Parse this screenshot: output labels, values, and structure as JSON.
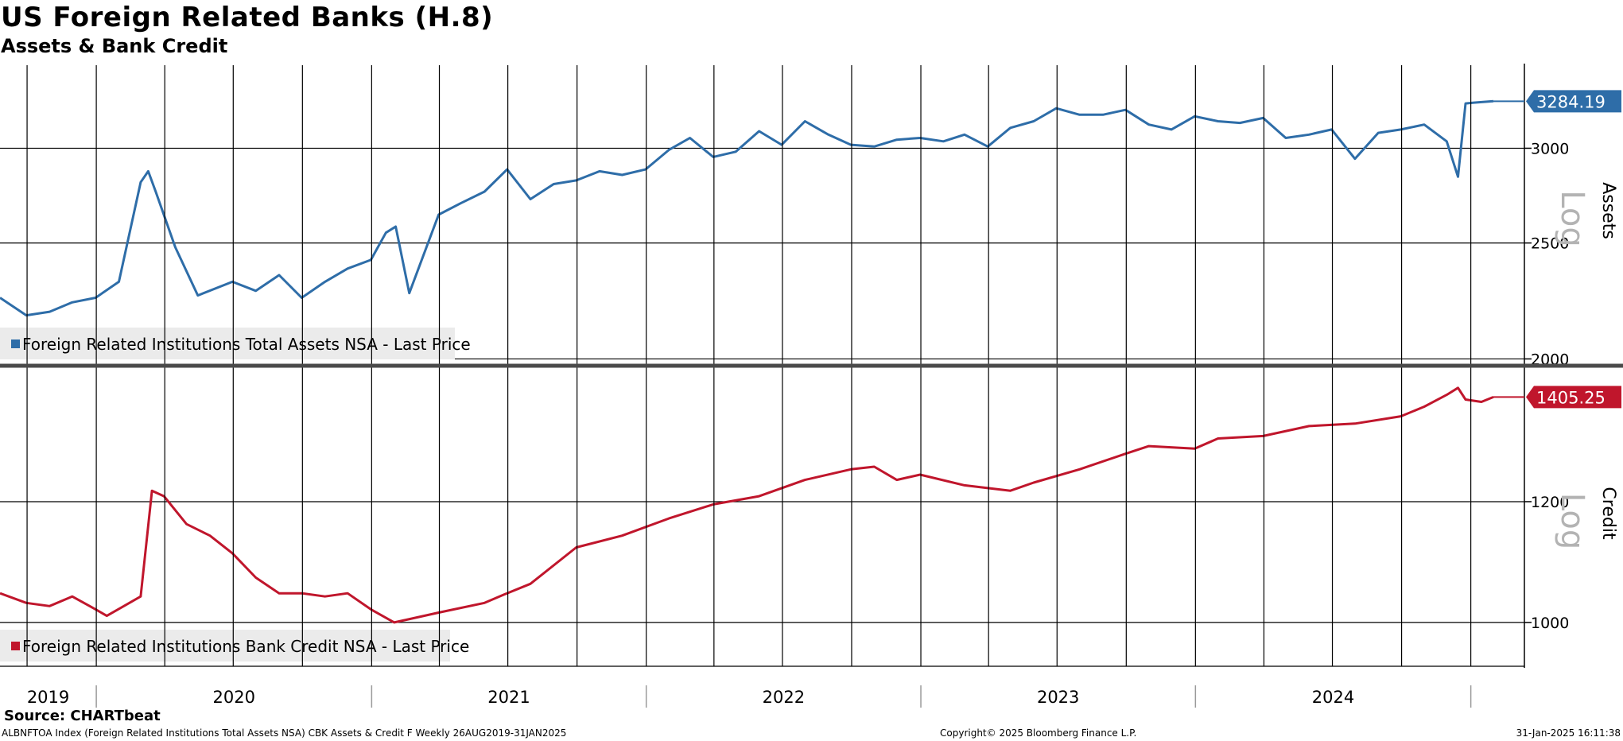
{
  "title": "US Foreign Related Banks (H.8)",
  "subtitle": "Assets & Bank Credit",
  "source": "Source: CHARTbeat",
  "footer": {
    "left": "ALBNFTOA Index (Foreign Related Institutions Total Assets NSA) CBK Assets & Credit F  Weekly 26AUG2019-31JAN2025",
    "center": "Copyright© 2025 Bloomberg Finance L.P.",
    "right": "31-Jan-2025 16:11:38"
  },
  "colors": {
    "assets": "#2e6da8",
    "credit": "#c0162c"
  },
  "chart_data": [
    {
      "type": "line",
      "log_scale": true,
      "axis_title": "Assets",
      "scale_label": "Log",
      "ylim": [
        1980,
        3520
      ],
      "yticks": [
        2000,
        2500,
        3000
      ],
      "grid": true,
      "legend_position": "bottom-left",
      "last_value_label": "3284.19",
      "series": [
        {
          "name": "Foreign Related Institutions Total Assets NSA - Last Price",
          "x": [
            "2019-08-26",
            "2019-09-30",
            "2019-10-31",
            "2019-11-30",
            "2019-12-31",
            "2020-01-31",
            "2020-02-29",
            "2020-03-10",
            "2020-03-20",
            "2020-04-15",
            "2020-05-15",
            "2020-06-30",
            "2020-07-31",
            "2020-08-31",
            "2020-09-30",
            "2020-10-31",
            "2020-11-30",
            "2020-12-31",
            "2021-01-20",
            "2021-02-02",
            "2021-02-20",
            "2021-03-31",
            "2021-04-30",
            "2021-05-31",
            "2021-06-30",
            "2021-07-31",
            "2021-08-31",
            "2021-09-30",
            "2021-10-31",
            "2021-11-30",
            "2021-12-31",
            "2022-01-31",
            "2022-02-28",
            "2022-03-31",
            "2022-04-30",
            "2022-05-31",
            "2022-06-30",
            "2022-07-31",
            "2022-08-31",
            "2022-09-30",
            "2022-10-31",
            "2022-11-30",
            "2022-12-31",
            "2023-01-31",
            "2023-02-28",
            "2023-03-31",
            "2023-04-30",
            "2023-05-31",
            "2023-06-30",
            "2023-07-31",
            "2023-08-31",
            "2023-09-30",
            "2023-10-31",
            "2023-11-30",
            "2023-12-31",
            "2024-01-31",
            "2024-02-29",
            "2024-03-31",
            "2024-04-30",
            "2024-05-31",
            "2024-06-30",
            "2024-07-31",
            "2024-08-31",
            "2024-09-30",
            "2024-10-31",
            "2024-11-30",
            "2024-12-15",
            "2024-12-25",
            "2025-01-05",
            "2025-01-31"
          ],
          "values": [
            2250,
            2175,
            2190,
            2230,
            2250,
            2320,
            2810,
            2870,
            2760,
            2480,
            2260,
            2320,
            2280,
            2350,
            2250,
            2320,
            2380,
            2420,
            2550,
            2580,
            2270,
            2640,
            2700,
            2760,
            2880,
            2720,
            2800,
            2820,
            2870,
            2850,
            2880,
            2990,
            3060,
            2950,
            2980,
            3100,
            3020,
            3160,
            3080,
            3020,
            3010,
            3050,
            3060,
            3040,
            3080,
            3010,
            3120,
            3160,
            3240,
            3200,
            3200,
            3230,
            3140,
            3110,
            3190,
            3160,
            3150,
            3180,
            3060,
            3080,
            3110,
            2940,
            3090,
            3110,
            3140,
            3040,
            2840,
            3270,
            3275,
            3284.19
          ]
        }
      ]
    },
    {
      "type": "line",
      "log_scale": true,
      "axis_title": "Credit",
      "scale_label": "Log",
      "ylim": [
        936,
        1468
      ],
      "yticks": [
        1000,
        1200
      ],
      "grid": true,
      "legend_position": "bottom-left",
      "last_value_label": "1405.25",
      "x_tick_labels": [
        "2019",
        "2020",
        "2021",
        "2022",
        "2023",
        "2024"
      ],
      "series": [
        {
          "name": "Foreign Related Institutions Bank Credit NSA - Last Price",
          "x": [
            "2019-08-26",
            "2019-09-30",
            "2019-10-31",
            "2019-11-30",
            "2019-12-31",
            "2020-01-15",
            "2020-02-29",
            "2020-03-15",
            "2020-03-31",
            "2020-04-30",
            "2020-05-31",
            "2020-06-30",
            "2020-07-31",
            "2020-08-31",
            "2020-09-30",
            "2020-10-31",
            "2020-11-30",
            "2020-12-31",
            "2021-01-31",
            "2021-03-31",
            "2021-05-31",
            "2021-06-30",
            "2021-07-31",
            "2021-09-30",
            "2021-11-30",
            "2022-01-31",
            "2022-03-31",
            "2022-05-31",
            "2022-07-31",
            "2022-09-30",
            "2022-10-31",
            "2022-11-30",
            "2022-12-31",
            "2023-02-28",
            "2023-04-30",
            "2023-05-31",
            "2023-07-31",
            "2023-09-30",
            "2023-10-31",
            "2023-12-31",
            "2024-01-31",
            "2024-03-31",
            "2024-05-31",
            "2024-07-31",
            "2024-09-30",
            "2024-10-31",
            "2024-11-30",
            "2024-12-15",
            "2024-12-25",
            "2025-01-15",
            "2025-01-31"
          ],
          "values": [
            1045,
            1030,
            1025,
            1040,
            1020,
            1010,
            1040,
            1220,
            1210,
            1160,
            1140,
            1110,
            1070,
            1045,
            1045,
            1040,
            1045,
            1020,
            1000,
            1015,
            1030,
            1045,
            1060,
            1120,
            1140,
            1170,
            1195,
            1210,
            1240,
            1260,
            1265,
            1240,
            1250,
            1230,
            1220,
            1235,
            1260,
            1290,
            1305,
            1300,
            1320,
            1325,
            1345,
            1350,
            1365,
            1385,
            1410,
            1425,
            1400,
            1395,
            1405.25
          ]
        }
      ]
    }
  ]
}
